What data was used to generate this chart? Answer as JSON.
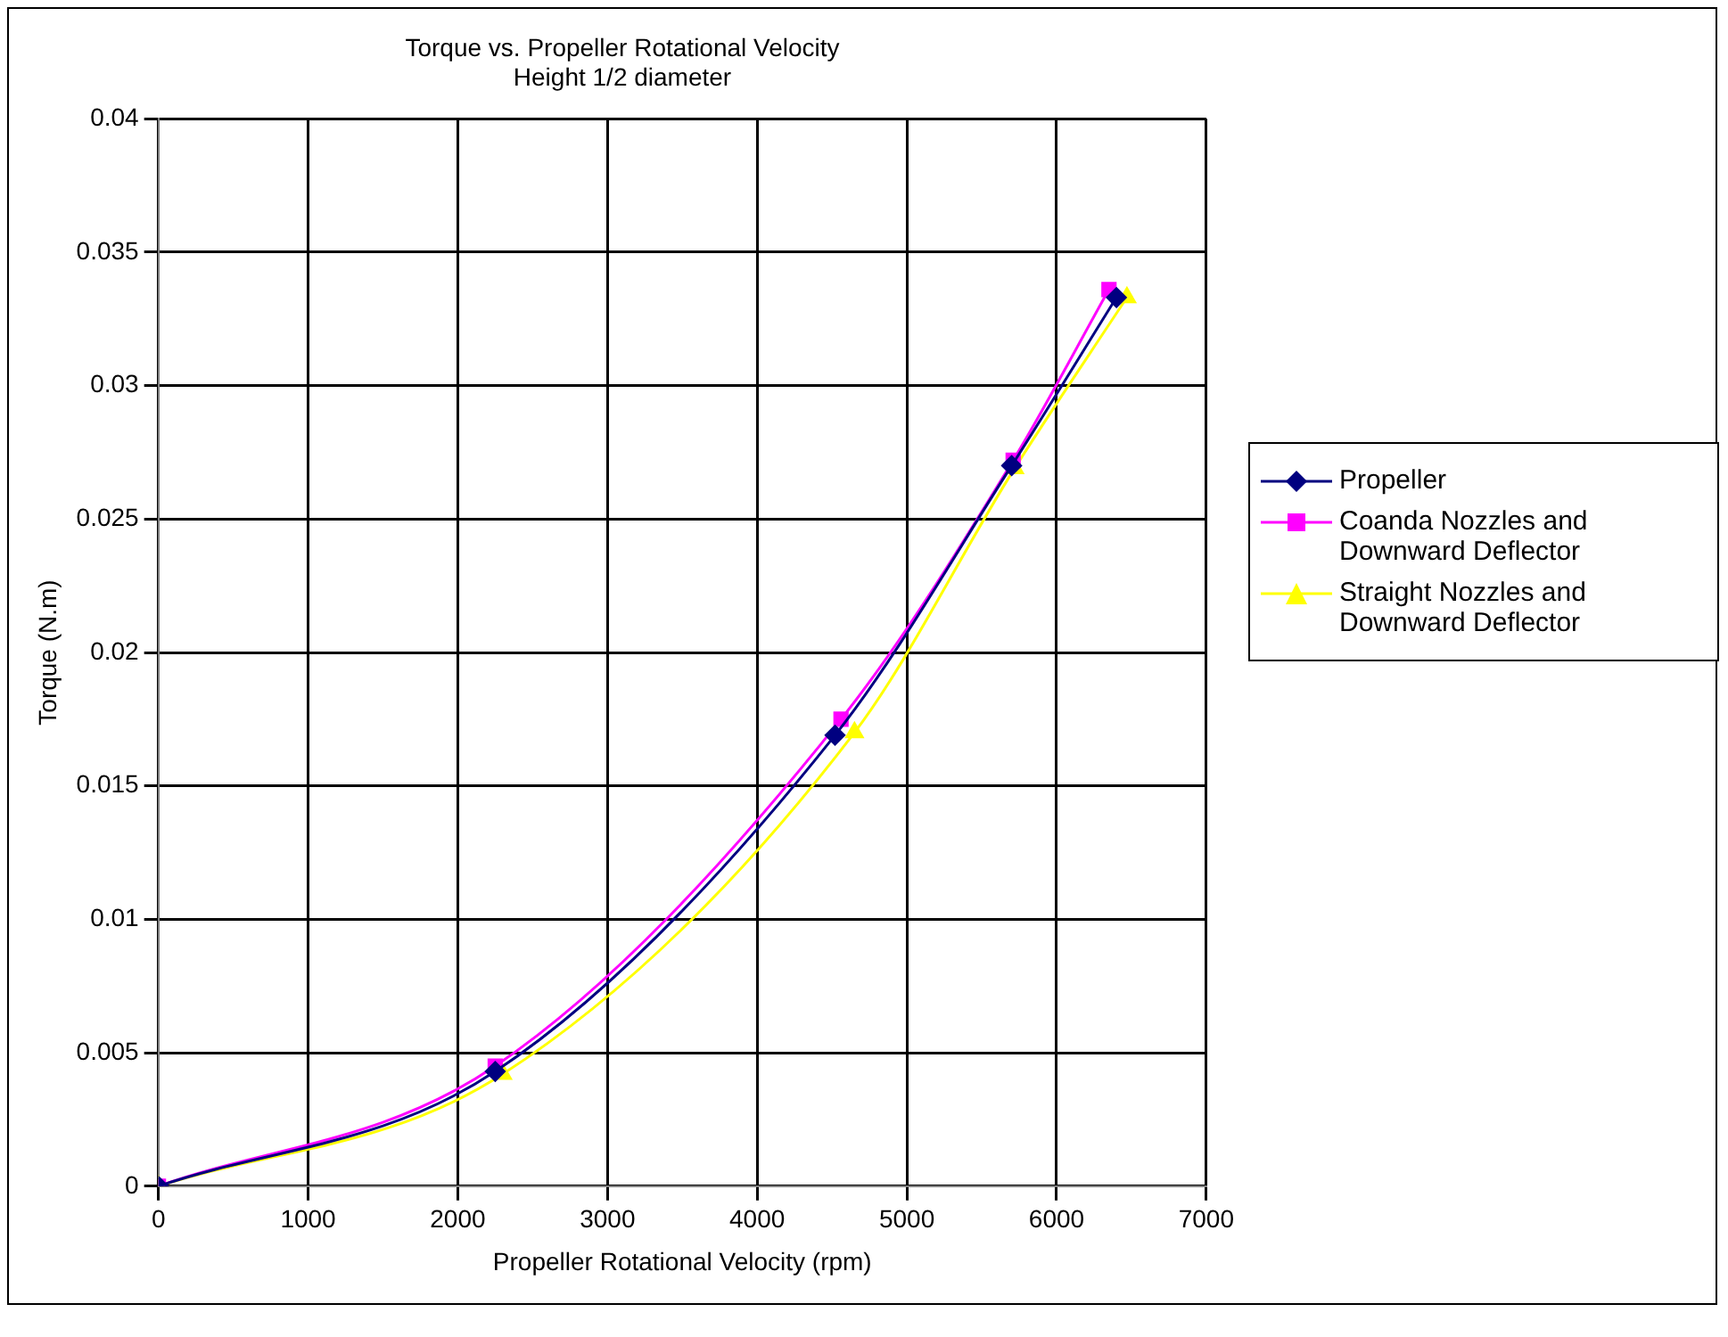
{
  "chart_data": {
    "type": "line",
    "title": "Torque vs. Propeller Rotational Velocity",
    "subtitle": "Height 1/2 diameter",
    "xlabel": "Propeller Rotational Velocity (rpm)",
    "ylabel": "Torque (N.m)",
    "xlim": [
      0,
      7000
    ],
    "xticks": [
      0,
      1000,
      2000,
      3000,
      4000,
      5000,
      6000,
      7000
    ],
    "ylim": [
      0,
      0.04
    ],
    "yticks": [
      0,
      0.005,
      0.01,
      0.015,
      0.02,
      0.025,
      0.03,
      0.035,
      0.04
    ],
    "grid": true,
    "legend": "right",
    "series": [
      {
        "name": "Propeller",
        "color": "#000080",
        "marker": "diamond",
        "x": [
          0,
          2250,
          4520,
          5700,
          6400
        ],
        "values": [
          0,
          0.0043,
          0.0169,
          0.027,
          0.0333
        ]
      },
      {
        "name": "Coanda Nozzles and Downward Deflector",
        "color": "#ff00ff",
        "marker": "square",
        "x": [
          0,
          2250,
          4560,
          5710,
          6350
        ],
        "values": [
          0,
          0.0045,
          0.0175,
          0.0272,
          0.0336
        ]
      },
      {
        "name": "Straight Nozzles and Downward Deflector",
        "color": "#ffff00",
        "marker": "triangle",
        "x": [
          0,
          2300,
          4650,
          5720,
          6470
        ],
        "values": [
          0,
          0.0042,
          0.017,
          0.0269,
          0.0333
        ]
      }
    ]
  }
}
